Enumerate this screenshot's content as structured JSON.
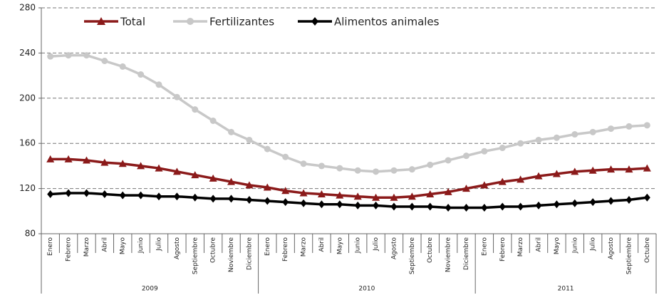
{
  "chart_data": {
    "type": "line",
    "categories": [
      "Enero",
      "Febrero",
      "Marzo",
      "Abril",
      "Mayo",
      "Junio",
      "Julio",
      "Agosto",
      "Septiembre",
      "Octubre",
      "Noviembre",
      "Diciembre",
      "Enero",
      "Febrero",
      "Marzo",
      "Abril",
      "Mayo",
      "Junio",
      "Julio",
      "Agosto",
      "Septiembre",
      "Octubre",
      "Noviembre",
      "Diciembre",
      "Enero",
      "Febrero",
      "Marzo",
      "Abril",
      "Mayo",
      "Junio",
      "Julio",
      "Agosto",
      "Septiembre",
      "Octubre"
    ],
    "groups": [
      {
        "label": "2009",
        "span": 12
      },
      {
        "label": "2010",
        "span": 12
      },
      {
        "label": "2011",
        "span": 10
      }
    ],
    "series": [
      {
        "name": "Total",
        "color": "#8b1a1a",
        "marker": "triangle",
        "values": [
          146,
          146,
          145,
          143,
          142,
          140,
          138,
          135,
          132,
          129,
          126,
          123,
          121,
          118,
          116,
          115,
          114,
          113,
          112,
          112,
          113,
          115,
          117,
          120,
          123,
          126,
          128,
          131,
          133,
          135,
          136,
          137,
          137,
          138
        ]
      },
      {
        "name": "Fertilizantes",
        "color": "#c8c8c8",
        "marker": "circle",
        "values": [
          237,
          238,
          238,
          233,
          228,
          221,
          212,
          201,
          190,
          180,
          170,
          163,
          155,
          148,
          142,
          140,
          138,
          136,
          135,
          136,
          137,
          141,
          145,
          149,
          153,
          156,
          160,
          163,
          165,
          168,
          170,
          173,
          175,
          176
        ]
      },
      {
        "name": "Alimentos animales",
        "color": "#000000",
        "marker": "diamond",
        "values": [
          115,
          116,
          116,
          115,
          114,
          114,
          113,
          113,
          112,
          111,
          111,
          110,
          109,
          108,
          107,
          106,
          106,
          105,
          105,
          104,
          104,
          104,
          103,
          103,
          103,
          104,
          104,
          105,
          106,
          107,
          108,
          109,
          110,
          112
        ]
      }
    ],
    "ylim": [
      80,
      280
    ],
    "yticks": [
      80,
      120,
      160,
      200,
      240,
      280
    ],
    "grid": true,
    "legend": "top"
  }
}
